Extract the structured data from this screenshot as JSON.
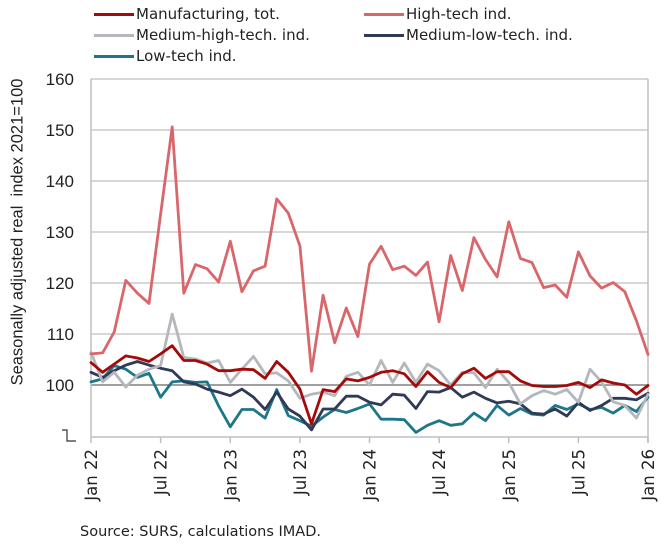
{
  "chart_data": {
    "type": "line",
    "title": "",
    "xlabel": "",
    "ylabel": "Seasonally adjusted real  index 2021=100",
    "ylim": [
      90,
      160
    ],
    "yticks": [
      100,
      110,
      120,
      130,
      140,
      150,
      160
    ],
    "ytick_labels": [
      "100",
      "110",
      "120",
      "130",
      "140",
      "150",
      "160"
    ],
    "axis_break_below": 100,
    "reference_line": 100,
    "grid": true,
    "x_start": "Jan 22",
    "x_end": "Jan 26",
    "x_tick_labels": [
      "Jan 22",
      "Jul 22",
      "Jan 23",
      "Jul 23",
      "Jan 24",
      "Jul 24",
      "Jan 25",
      "Jul 25",
      "Jan 26"
    ],
    "legend_position": "top",
    "series": [
      {
        "name": "Manufacturing, tot.",
        "color": "#A50A0A",
        "values": [
          104.4,
          102.5,
          104.1,
          105.7,
          105.3,
          104.6,
          106.1,
          107.7,
          104.8,
          104.8,
          104.1,
          102.8,
          102.8,
          103.1,
          103.0,
          101.3,
          104.6,
          102.5,
          99.2,
          92.4,
          99.1,
          98.7,
          101.2,
          100.8,
          101.5,
          102.5,
          102.8,
          102.2,
          99.7,
          102.6,
          100.5,
          99.5,
          102.2,
          103.3,
          101.3,
          102.6,
          102.6,
          100.8,
          99.9,
          99.7,
          99.7,
          99.9,
          100.5,
          99.5,
          101.0,
          100.4,
          100.0,
          98.2,
          99.9
        ]
      },
      {
        "name": "High-tech ind.",
        "color": "#D9666A",
        "values": [
          106.1,
          106.3,
          110.4,
          120.5,
          118.0,
          116.0,
          133.5,
          150.6,
          118.0,
          123.6,
          122.8,
          120.2,
          128.2,
          118.3,
          122.4,
          123.3,
          136.5,
          133.7,
          127.3,
          102.7,
          117.6,
          108.3,
          115.1,
          109.5,
          123.7,
          127.2,
          122.6,
          123.3,
          121.5,
          124.1,
          112.4,
          125.4,
          118.5,
          128.9,
          124.6,
          121.2,
          132.0,
          124.8,
          124.0,
          119.1,
          119.6,
          117.2,
          126.1,
          121.4,
          119.0,
          120.1,
          118.3,
          112.6,
          106.0
        ]
      },
      {
        "name": "Medium-high-tech. ind.",
        "color": "#B4B7BC",
        "values": [
          106.4,
          100.6,
          102.5,
          99.6,
          101.9,
          103.1,
          103.8,
          113.9,
          105.4,
          105.1,
          104.3,
          104.8,
          100.5,
          103.1,
          105.6,
          102.2,
          102.4,
          100.8,
          97.4,
          98.2,
          98.6,
          97.9,
          101.7,
          102.5,
          100.0,
          104.8,
          100.5,
          104.3,
          100.5,
          104.1,
          102.8,
          100.0,
          102.5,
          102.4,
          99.5,
          103.1,
          100.5,
          96.3,
          97.9,
          98.9,
          98.2,
          99.1,
          96.6,
          103.1,
          100.6,
          96.7,
          96.0,
          93.5,
          98.2
        ]
      },
      {
        "name": "Medium-low-tech. ind.",
        "color": "#2F3A56",
        "values": [
          102.5,
          101.5,
          102.8,
          103.9,
          104.6,
          103.9,
          103.3,
          102.8,
          100.6,
          100.2,
          99.2,
          98.6,
          97.9,
          99.2,
          97.6,
          95.2,
          98.6,
          95.3,
          93.9,
          91.2,
          95.3,
          95.3,
          97.8,
          97.8,
          96.6,
          96.1,
          98.2,
          98.0,
          95.4,
          98.7,
          98.6,
          99.5,
          97.6,
          98.6,
          97.4,
          96.5,
          96.8,
          96.3,
          94.5,
          94.3,
          95.3,
          93.9,
          96.6,
          95.0,
          96.0,
          97.4,
          97.4,
          97.1,
          98.4
        ]
      },
      {
        "name": "Low-tech ind.",
        "color": "#1E7689",
        "values": [
          100.6,
          101.2,
          103.8,
          103.1,
          101.5,
          102.3,
          97.6,
          100.6,
          100.8,
          100.5,
          100.6,
          95.9,
          91.8,
          95.2,
          95.2,
          93.5,
          99.1,
          94.0,
          93.0,
          91.9,
          93.7,
          95.2,
          94.6,
          95.4,
          96.3,
          93.3,
          93.3,
          93.2,
          90.7,
          92.1,
          93.0,
          92.1,
          92.4,
          94.5,
          93.0,
          96.0,
          94.1,
          95.4,
          94.3,
          94.1,
          96.0,
          95.2,
          96.3,
          95.2,
          95.6,
          94.5,
          96.0,
          94.8,
          97.6
        ]
      }
    ]
  },
  "legend": [
    {
      "label": "Manufacturing, tot.",
      "color": "#A50A0A"
    },
    {
      "label": "High-tech ind.",
      "color": "#D9666A"
    },
    {
      "label": "Medium-high-tech. ind.",
      "color": "#B4B7BC"
    },
    {
      "label": "Medium-low-tech. ind.",
      "color": "#2F3A56"
    },
    {
      "label": "Low-tech ind.",
      "color": "#1E7689"
    }
  ],
  "source": "Source: SURS, calculations IMAD."
}
